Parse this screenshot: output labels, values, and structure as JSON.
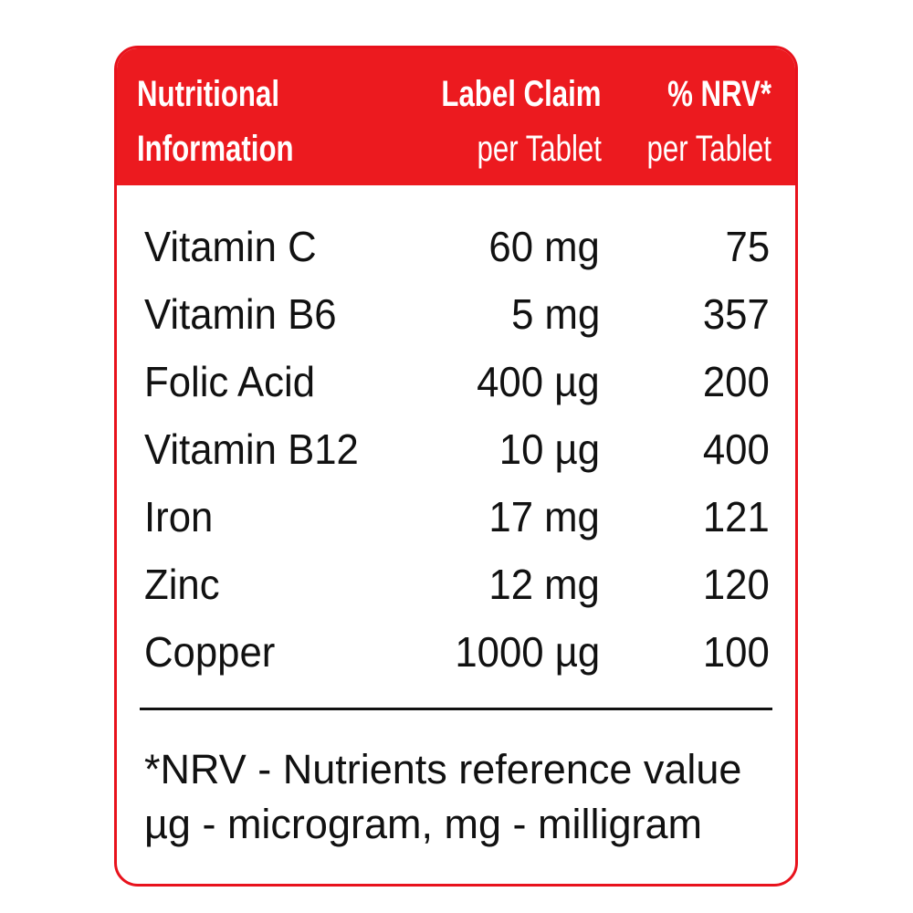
{
  "header": {
    "col1": [
      "Nutritional",
      "Information"
    ],
    "col2": [
      "Label Claim",
      "per Tablet"
    ],
    "col3": [
      "% NRV*",
      "per Tablet"
    ]
  },
  "rows": [
    {
      "name": "Vitamin C",
      "claim": "60 mg",
      "nrv": "75"
    },
    {
      "name": "Vitamin B6",
      "claim": "5 mg",
      "nrv": "357"
    },
    {
      "name": "Folic Acid",
      "claim": "400 µg",
      "nrv": "200"
    },
    {
      "name": "Vitamin B12",
      "claim": "10 µg",
      "nrv": "400"
    },
    {
      "name": "Iron",
      "claim": "17 mg",
      "nrv": "121"
    },
    {
      "name": "Zinc",
      "claim": "12 mg",
      "nrv": "120"
    },
    {
      "name": "Copper",
      "claim": "1000 µg",
      "nrv": "100"
    }
  ],
  "footnotes": [
    "*NRV - Nutrients reference value",
    "µg - microgram, mg - milligram"
  ],
  "colors": {
    "accent": "#ec1a1f"
  }
}
